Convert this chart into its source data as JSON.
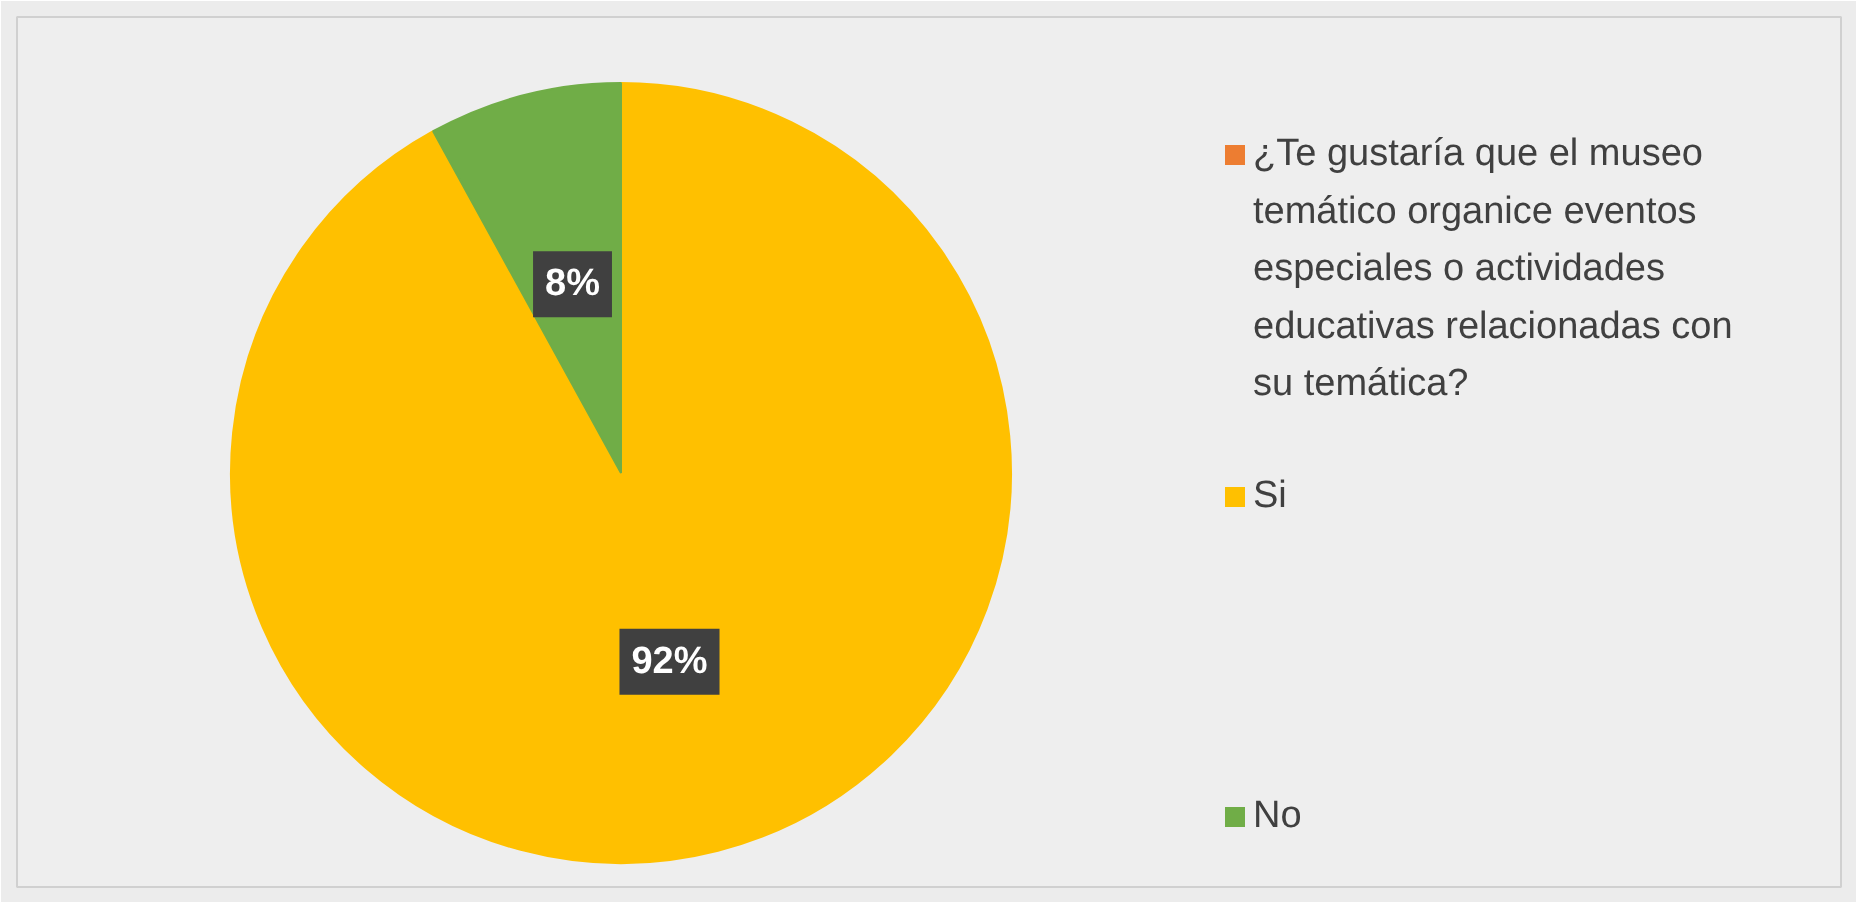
{
  "chart_data": {
    "type": "pie",
    "categories": [
      "¿Te gustaría que el museo temático organice eventos especiales o actividades educativas relacionadas con su temática?",
      "Si",
      "No"
    ],
    "values": [
      0,
      92,
      8
    ],
    "colors": [
      "#ed7d31",
      "#ffc000",
      "#70ad47"
    ],
    "value_labels": [
      null,
      "92%",
      "8%"
    ],
    "legend": "right"
  }
}
